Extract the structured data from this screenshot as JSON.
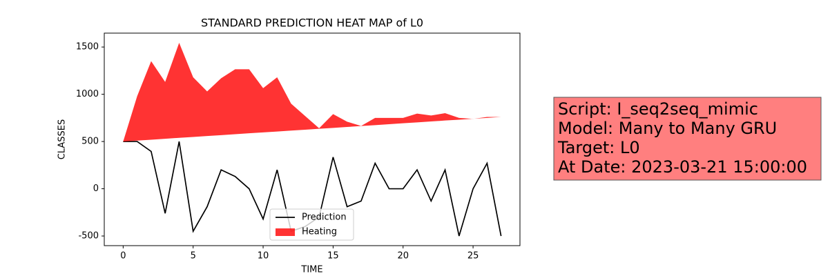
{
  "chart_data": {
    "type": "line",
    "title": "STANDARD PREDICTION HEAT MAP of L0",
    "xlabel": "TIME",
    "ylabel": "CLASSES",
    "x": [
      0,
      1,
      2,
      3,
      4,
      5,
      6,
      7,
      8,
      9,
      10,
      11,
      12,
      13,
      14,
      15,
      16,
      17,
      18,
      19,
      20,
      21,
      22,
      23,
      24,
      25,
      26,
      27
    ],
    "series": [
      {
        "name": "Prediction",
        "type": "line",
        "color": "#000000",
        "values": [
          500,
          500,
          395,
          -260,
          500,
          -450,
          -190,
          200,
          130,
          0,
          -320,
          200,
          -450,
          -400,
          -300,
          335,
          -190,
          -130,
          270,
          0,
          0,
          200,
          -130,
          200,
          -500,
          0,
          270,
          -500
        ]
      },
      {
        "name": "Heating",
        "type": "area",
        "color": "#ff0000",
        "values": [
          500,
          980,
          1350,
          1130,
          1545,
          1180,
          1030,
          1170,
          1265,
          1265,
          1065,
          1180,
          900,
          770,
          640,
          790,
          710,
          665,
          750,
          750,
          750,
          795,
          775,
          800,
          750,
          740,
          760,
          760
        ],
        "base": [
          500,
          510,
          519,
          529,
          539,
          548,
          558,
          567,
          577,
          587,
          596,
          606,
          616,
          625,
          635,
          644,
          654,
          664,
          673,
          683,
          693,
          702,
          712,
          722,
          731,
          741,
          750,
          760
        ]
      }
    ],
    "xlim": [
      -1.35,
      28.35
    ],
    "ylim": [
      -602,
      1647
    ],
    "xticks": [
      0,
      5,
      10,
      15,
      20,
      25
    ],
    "yticks": [
      -500,
      0,
      500,
      1000,
      1500
    ],
    "legend": "lower center",
    "annotations": [
      "Script: I_seq2seq_mimic",
      "Model: Many to Many GRU",
      "Target: L0",
      "At Date: 2023-03-21 15:00:00"
    ],
    "annotation_color": "#ff7f7f"
  }
}
